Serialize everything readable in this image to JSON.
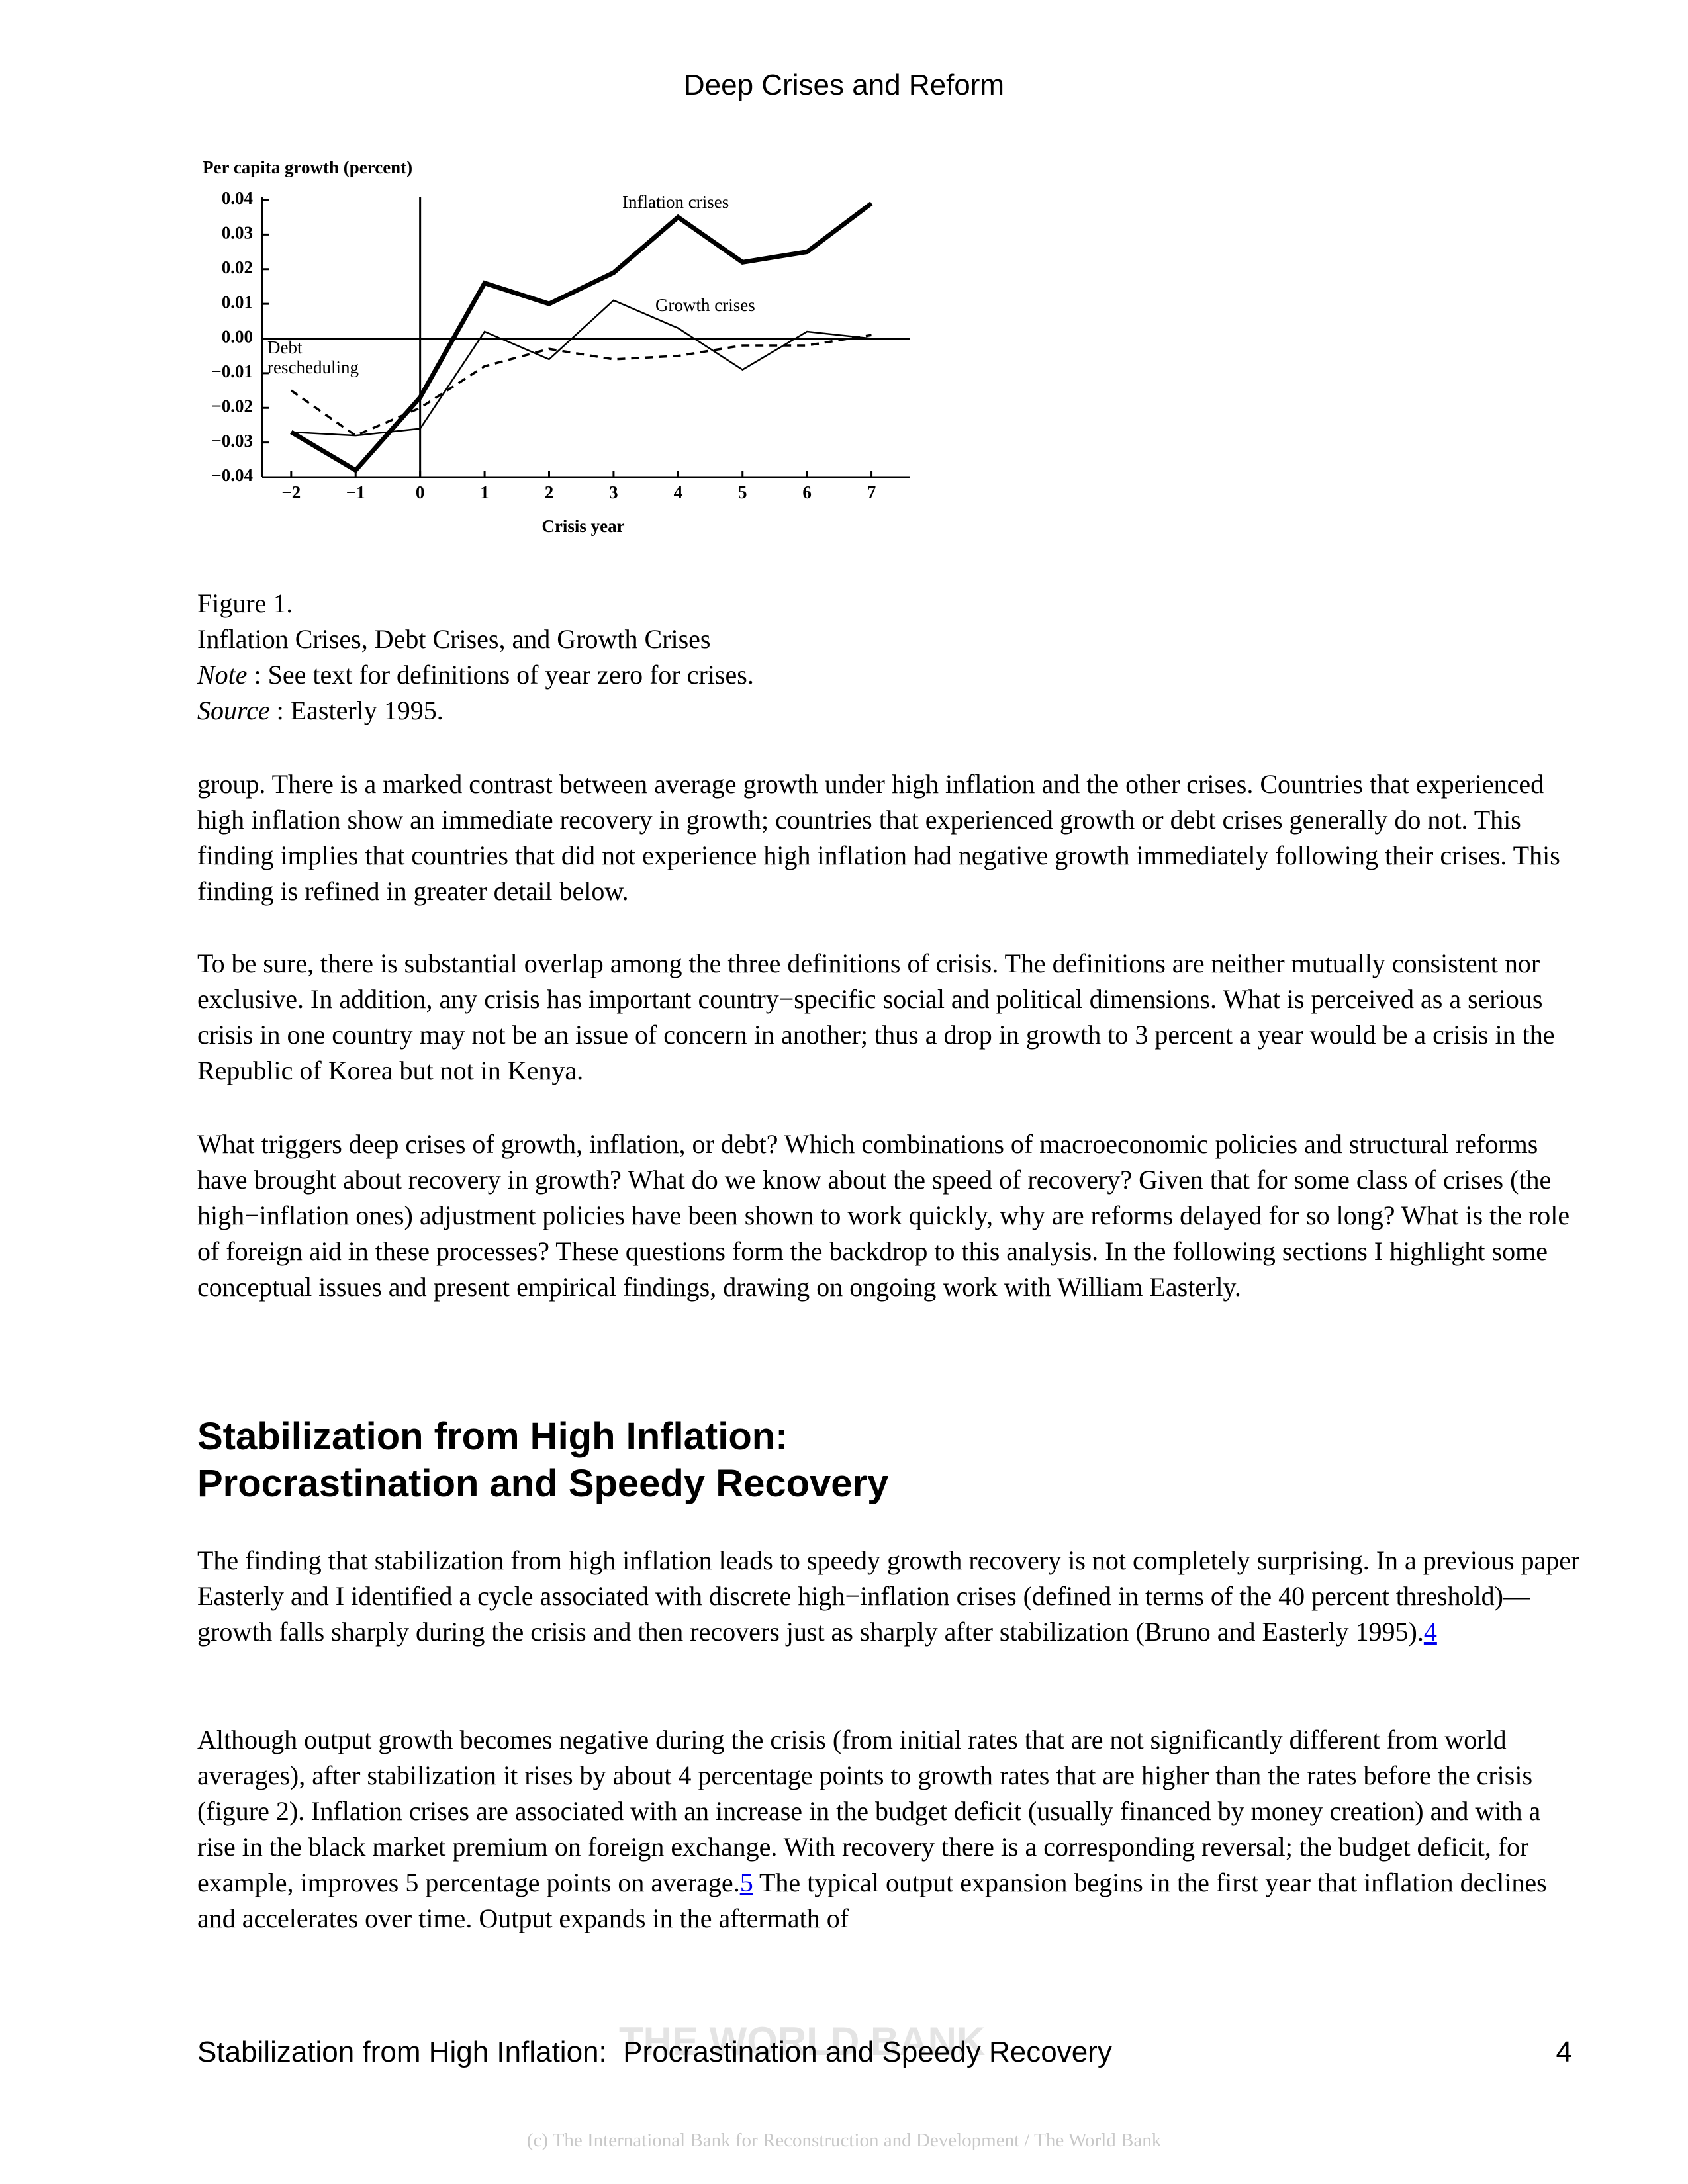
{
  "header": {
    "title": "Deep Crises and Reform"
  },
  "chart_data": {
    "type": "line",
    "y_label": "Per capita growth (percent)",
    "x_label": "Crisis year",
    "x": [
      -2,
      -1,
      0,
      1,
      2,
      3,
      4,
      5,
      6,
      7
    ],
    "series": [
      {
        "name": "Inflation crises",
        "color": "#000000",
        "line_style": "thick",
        "values": [
          -0.027,
          -0.038,
          -0.017,
          0.016,
          0.01,
          0.019,
          0.035,
          0.022,
          0.025,
          0.039
        ]
      },
      {
        "name": "Growth crises",
        "color": "#000000",
        "line_style": "thin",
        "values": [
          -0.027,
          -0.028,
          -0.026,
          0.002,
          -0.006,
          0.011,
          0.003,
          -0.009,
          0.002,
          0.0
        ]
      },
      {
        "name": "Debt rescheduling",
        "color": "#000000",
        "line_style": "dashed",
        "values": [
          -0.015,
          -0.028,
          -0.02,
          -0.008,
          -0.003,
          -0.006,
          -0.005,
          -0.002,
          -0.002,
          0.001
        ]
      }
    ],
    "xlim": [
      -2.45,
      7.6
    ],
    "ylim": [
      -0.04,
      0.04
    ],
    "xticks": [
      {
        "value": -2,
        "label": "−2"
      },
      {
        "value": -1,
        "label": "−1"
      },
      0,
      1,
      2,
      3,
      4,
      5,
      6,
      7
    ],
    "yticks": [
      0.04,
      0.03,
      0.02,
      0.01,
      {
        "value": 0,
        "label": "0.00"
      },
      {
        "value": -0.01,
        "label": "−0.01"
      },
      {
        "value": -0.02,
        "label": "−0.02"
      },
      {
        "value": -0.03,
        "label": "−0.03"
      },
      {
        "value": -0.04,
        "label": "−0.04"
      }
    ],
    "grid": false
  },
  "figure_caption": {
    "label": "Figure 1.",
    "title": "Inflation Crises, Debt Crises, and Growth Crises",
    "note_label": "Note",
    "note": " : See text for definitions of year zero for crises.",
    "source_label": "Source",
    "source": " : Easterly 1995."
  },
  "body": {
    "paragraphs": [
      {
        "text": "group. There is a marked contrast between average growth under high inflation and the other crises. Countries that experienced high inflation show an immediate recovery in growth; countries that experienced growth or debt crises generally do not. This finding implies that countries that did not experience high inflation had negative growth immediately following their crises. This finding is refined in greater detail below."
      },
      {
        "text": "To be sure, there is substantial overlap among the three definitions of crisis. The definitions are neither mutually consistent nor exclusive. In addition, any crisis has important country−specific social and political dimensions. What is perceived as a serious crisis in one country may not be an issue of concern in another; thus a drop in growth to 3 percent a year would be a crisis in the Republic of Korea but not in Kenya."
      },
      {
        "text": "What triggers deep crises of growth, inflation, or debt? Which combinations of macroeconomic policies and structural reforms have brought about recovery in growth? What do we know about the speed of recovery? Given that for some class of crises (the high−inflation ones) adjustment policies have been shown to work quickly, why are reforms delayed for so long? What is the role of foreign aid in these processes? These questions form the backdrop to this analysis. In the following sections I highlight some conceptual issues and present empirical findings, drawing on ongoing work with William Easterly."
      }
    ],
    "section": {
      "heading": [
        "Stabilization from High Inflation:",
        "Procrastination and Speedy Recovery"
      ],
      "paragraphs": [
        {
          "text": "The finding that stabilization from high inflation leads to speedy growth recovery is not completely surprising. In a previous paper Easterly and I identified a cycle associated with discrete high−inflation crises (defined in terms of the 40 percent threshold)—growth falls sharply during the crisis and then recovers just as sharply after stabilization (Bruno and Easterly 1995).",
          "footnote": "4"
        },
        {
          "text": "Although output growth becomes negative during the crisis (from initial rates that are not significantly different from world averages), after stabilization it rises by about 4 percentage points to growth rates that are higher than the rates before the crisis (figure 2). Inflation crises are associated with an increase in the budget deficit (usually financed by money creation) and with a rise in the black market premium on foreign exchange. With recovery there is a corresponding reversal; the budget deficit, for example, improves 5 percentage points on average.",
          "footnote": "5",
          "text_after": " The typical output expansion begins in the first year that inflation declines and accelerates over time. Output expands in the aftermath of"
        }
      ]
    }
  },
  "footer": {
    "title": "Stabilization from High Inflation:  Procrastination and Speedy Recovery",
    "page": "4",
    "watermark": "THE WORLD BANK",
    "copyright": "(c) The International Bank for Reconstruction and Development / The World Bank"
  }
}
